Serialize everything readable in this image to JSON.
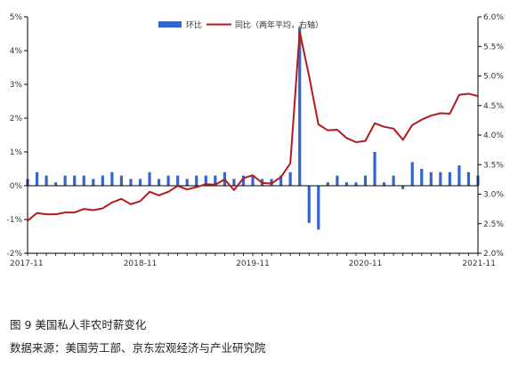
{
  "figure": {
    "caption_title": "图 9  美国私人非农时薪变化",
    "caption_source": "数据来源：美国劳工部、京东宏观经济与产业研究院"
  },
  "colors": {
    "bar": "#3366cc",
    "line": "#b31b1b",
    "axis": "#000000",
    "text": "#333333"
  },
  "chart_data": {
    "type": "bar",
    "x_ticks": [
      "2017-11",
      "2018-11",
      "2019-11",
      "2020-11",
      "2021-11"
    ],
    "x": [
      "2017-11",
      "2017-12",
      "2018-01",
      "2018-02",
      "2018-03",
      "2018-04",
      "2018-05",
      "2018-06",
      "2018-07",
      "2018-08",
      "2018-09",
      "2018-10",
      "2018-11",
      "2018-12",
      "2019-01",
      "2019-02",
      "2019-03",
      "2019-04",
      "2019-05",
      "2019-06",
      "2019-07",
      "2019-08",
      "2019-09",
      "2019-10",
      "2019-11",
      "2019-12",
      "2020-01",
      "2020-02",
      "2020-03",
      "2020-04",
      "2020-05",
      "2020-06",
      "2020-07",
      "2020-08",
      "2020-09",
      "2020-10",
      "2020-11",
      "2020-12",
      "2021-01",
      "2021-02",
      "2021-03",
      "2021-04",
      "2021-05",
      "2021-06",
      "2021-07",
      "2021-08",
      "2021-09",
      "2021-10",
      "2021-11"
    ],
    "ylim_left": [
      -2,
      5
    ],
    "yticks_left": [
      "-2%",
      "-1%",
      "0%",
      "1%",
      "2%",
      "3%",
      "4%",
      "5%"
    ],
    "ylim_right": [
      2.0,
      6.0
    ],
    "yticks_right": [
      "2.0%",
      "2.5%",
      "3.0%",
      "3.5%",
      "4.0%",
      "4.5%",
      "5.0%",
      "5.5%",
      "6.0%"
    ],
    "grid": false,
    "legend_position": "top-center",
    "series": [
      {
        "name": "环比",
        "type": "bar",
        "axis": "left",
        "values": [
          0.2,
          0.4,
          0.3,
          0.1,
          0.3,
          0.3,
          0.3,
          0.2,
          0.3,
          0.4,
          0.3,
          0.2,
          0.2,
          0.4,
          0.2,
          0.3,
          0.3,
          0.2,
          0.3,
          0.3,
          0.3,
          0.4,
          0.2,
          0.3,
          0.3,
          0.2,
          0.2,
          0.3,
          0.4,
          4.7,
          -1.1,
          -1.3,
          0.1,
          0.3,
          0.1,
          0.1,
          0.3,
          1.0,
          0.1,
          0.3,
          -0.1,
          0.7,
          0.5,
          0.4,
          0.4,
          0.4,
          0.6,
          0.4,
          0.3
        ]
      },
      {
        "name": "同比（两年平均，右轴）",
        "type": "line",
        "axis": "right",
        "values": [
          2.55,
          2.68,
          2.66,
          2.66,
          2.69,
          2.69,
          2.75,
          2.73,
          2.76,
          2.86,
          2.92,
          2.83,
          2.88,
          3.04,
          2.98,
          3.04,
          3.14,
          3.08,
          3.12,
          3.17,
          3.16,
          3.25,
          3.07,
          3.27,
          3.32,
          3.19,
          3.18,
          3.29,
          3.52,
          5.75,
          5.0,
          4.18,
          4.08,
          4.09,
          3.95,
          3.88,
          3.9,
          4.2,
          4.14,
          4.11,
          3.92,
          4.17,
          4.26,
          4.33,
          4.37,
          4.36,
          4.68,
          4.7,
          4.66
        ]
      }
    ]
  }
}
